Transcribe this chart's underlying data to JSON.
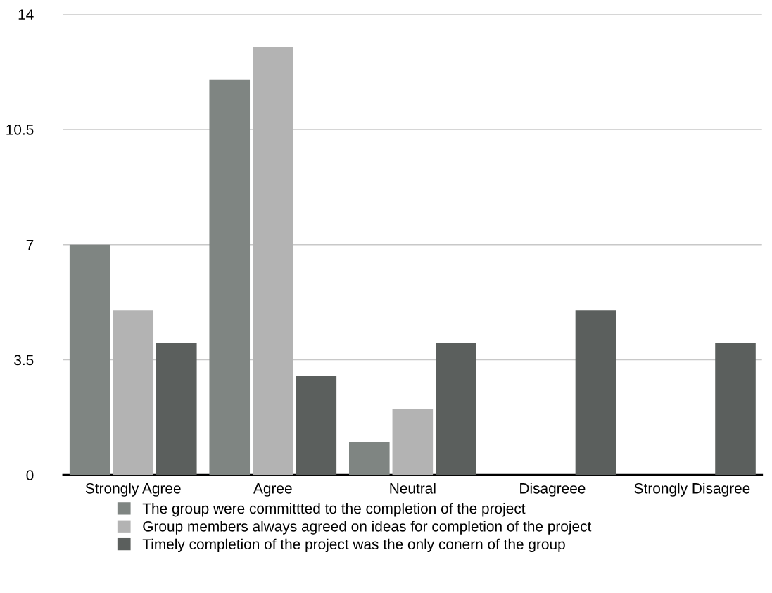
{
  "chart_data": {
    "type": "bar",
    "categories": [
      "Strongly Agree",
      "Agree",
      "Neutral",
      "Disagreee",
      "Strongly Disagree"
    ],
    "series": [
      {
        "name": "The group were committted to the completion of the project",
        "color": "#7f8582",
        "values": [
          7,
          12,
          1,
          0,
          0
        ]
      },
      {
        "name": "Group members always agreed on ideas for completion of the project",
        "color": "#b3b3b3",
        "values": [
          5,
          13,
          2,
          0,
          0
        ]
      },
      {
        "name": "Timely completion of the project was the only conern of the group",
        "color": "#5b5f5d",
        "values": [
          4,
          3,
          4,
          5,
          4
        ]
      }
    ],
    "ylim": [
      0,
      14
    ],
    "yticks": [
      0,
      3.5,
      7,
      10.5,
      14
    ],
    "grid": "y",
    "legend": "bottom"
  }
}
